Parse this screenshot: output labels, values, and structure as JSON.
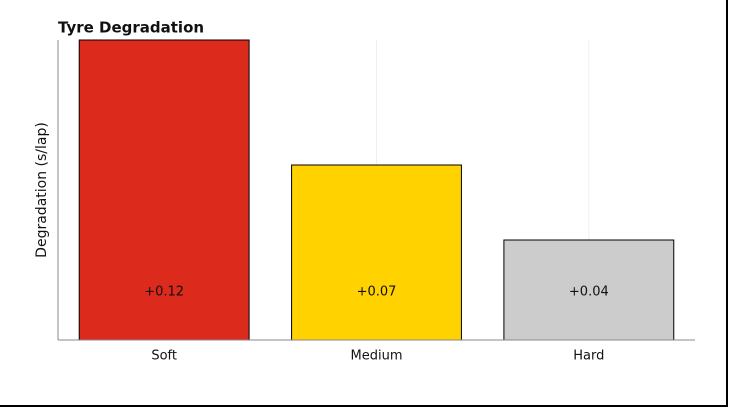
{
  "chart_data": {
    "type": "bar",
    "title": "Tyre Degradation",
    "y_label": "Degradation (s/lap)",
    "categories": [
      "Soft",
      "Medium",
      "Hard"
    ],
    "values": [
      0.12,
      0.07,
      0.04
    ],
    "value_labels": [
      "+0.12",
      "+0.07",
      "+0.04"
    ],
    "colors": [
      "#dc2a1c",
      "#ffd200",
      "#cccccc"
    ],
    "ylim": [
      0,
      0.12
    ],
    "grid": true
  }
}
